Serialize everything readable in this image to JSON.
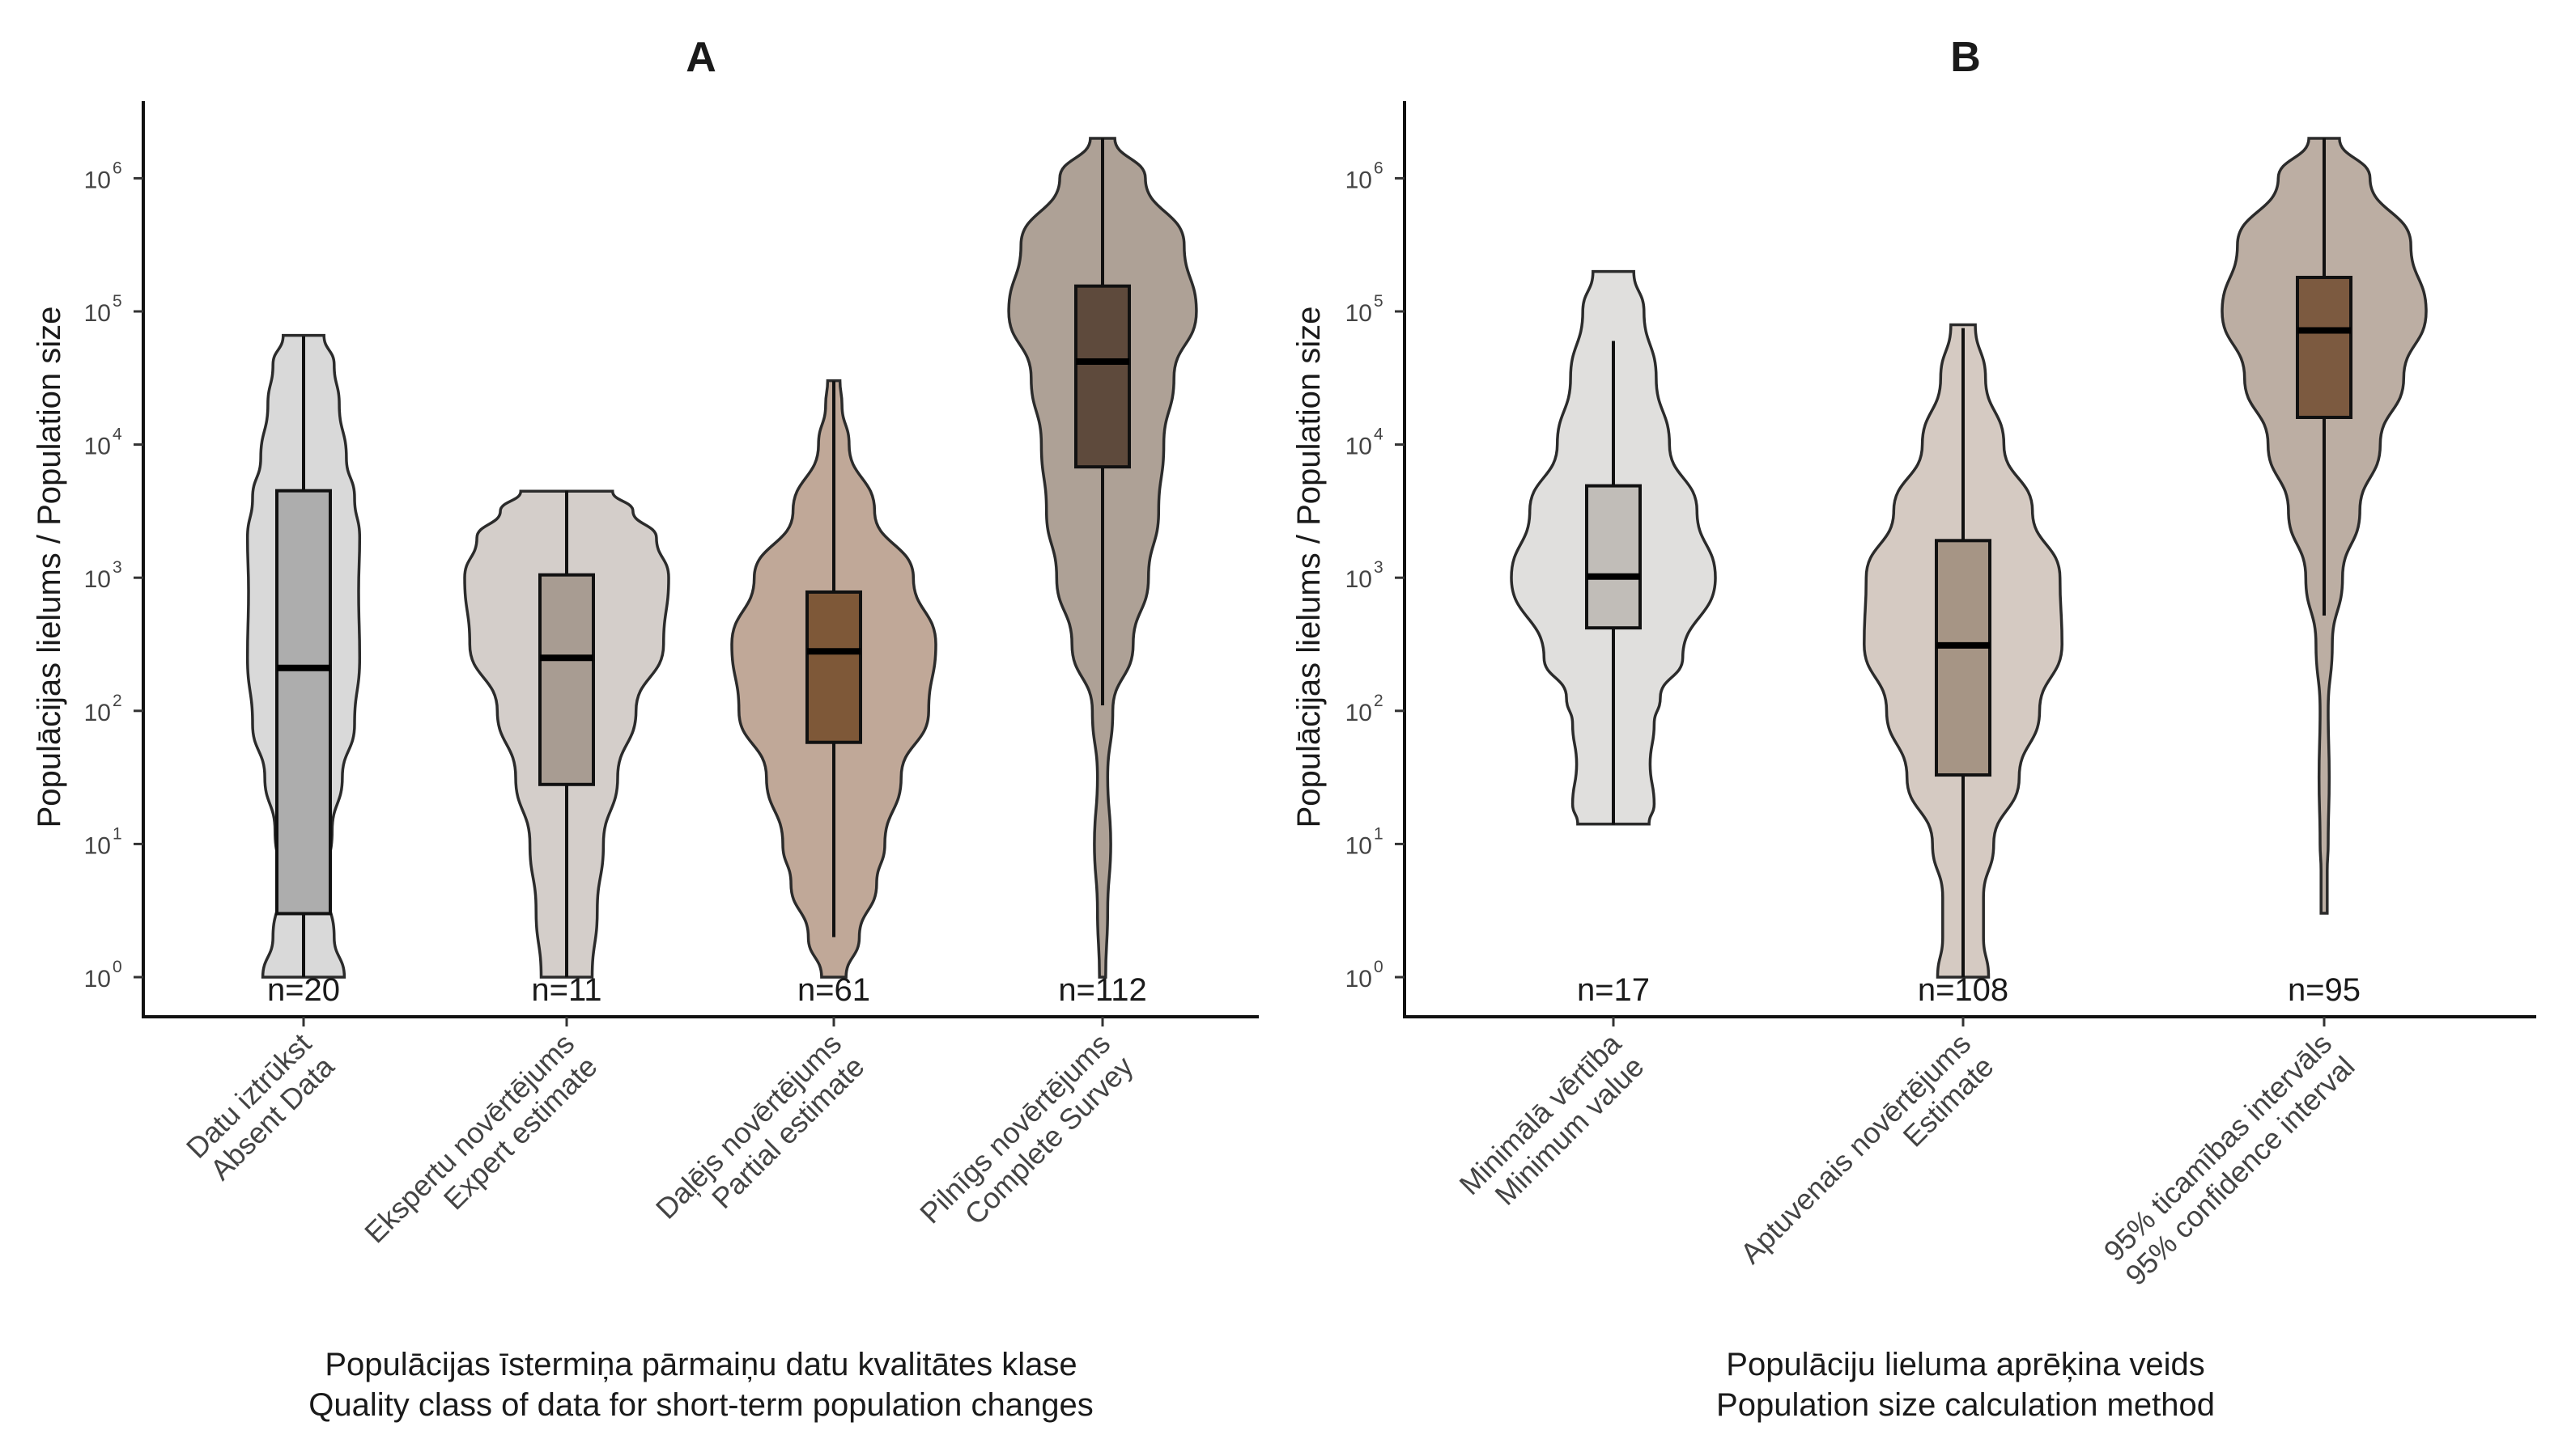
{
  "chart_data": [
    {
      "type": "violin",
      "title": "A",
      "ylabel": "Populācijas lielums / Population size",
      "xlabel": [
        "Populācijas īstermiņa pārmaiņu datu kvalitātes klase",
        "Quality class of data for short-term population changes"
      ],
      "yscale": "log10",
      "ylim": [
        1,
        2000000
      ],
      "yticks": [
        1,
        10,
        100,
        1000,
        10000,
        100000,
        1000000
      ],
      "grid": false,
      "categories": [
        {
          "label": [
            "Datu iztrūkst",
            "Absent Data"
          ],
          "n_label": "n=20",
          "fill": "#d9d9d9",
          "box_fill": "#adadad",
          "min": 1,
          "q1": 3,
          "median": 210,
          "q3": 4500,
          "max": 65000,
          "density": [
            [
              0.0,
              0.4
            ],
            [
              0.3,
              0.3
            ],
            [
              0.7,
              0.22
            ],
            [
              1.1,
              0.28
            ],
            [
              1.5,
              0.38
            ],
            [
              1.9,
              0.5
            ],
            [
              2.4,
              0.55
            ],
            [
              2.9,
              0.54
            ],
            [
              3.3,
              0.55
            ],
            [
              3.6,
              0.5
            ],
            [
              3.9,
              0.42
            ],
            [
              4.3,
              0.35
            ],
            [
              4.6,
              0.3
            ],
            [
              4.82,
              0.2
            ]
          ]
        },
        {
          "label": [
            "Ekspertu novērtējums",
            "Expert estimate"
          ],
          "n_label": "n=11",
          "fill": "#d4ceca",
          "box_fill": "#a89c92",
          "min": 1,
          "q1": 28,
          "median": 250,
          "q3": 1050,
          "max": 4500,
          "density": [
            [
              0.0,
              0.25
            ],
            [
              0.5,
              0.3
            ],
            [
              1.0,
              0.36
            ],
            [
              1.5,
              0.5
            ],
            [
              2.0,
              0.68
            ],
            [
              2.5,
              0.95
            ],
            [
              3.0,
              1.0
            ],
            [
              3.3,
              0.88
            ],
            [
              3.5,
              0.65
            ],
            [
              3.65,
              0.45
            ]
          ]
        },
        {
          "label": [
            "Daļējs novērtējums",
            "Partial estimate"
          ],
          "n_label": "n=61",
          "fill": "#c0a898",
          "box_fill": "#7e5838",
          "min": 2,
          "q1": 58,
          "median": 280,
          "q3": 780,
          "max": 30000,
          "density": [
            [
              0.0,
              0.12
            ],
            [
              0.3,
              0.25
            ],
            [
              0.7,
              0.42
            ],
            [
              1.0,
              0.5
            ],
            [
              1.5,
              0.66
            ],
            [
              2.0,
              0.93
            ],
            [
              2.5,
              1.0
            ],
            [
              3.0,
              0.78
            ],
            [
              3.5,
              0.4
            ],
            [
              4.0,
              0.15
            ],
            [
              4.3,
              0.08
            ],
            [
              4.48,
              0.06
            ]
          ]
        },
        {
          "label": [
            "Pilnīgs novērtējums",
            "Complete Survey"
          ],
          "n_label": "n=112",
          "fill": "#aea196",
          "box_fill": "#5e4a3c",
          "min": 110,
          "q1": 6800,
          "median": 42000,
          "q3": 155000,
          "max": 2000000,
          "density": [
            [
              0.0,
              0.03
            ],
            [
              0.5,
              0.05
            ],
            [
              1.0,
              0.08
            ],
            [
              1.5,
              0.05
            ],
            [
              2.0,
              0.1
            ],
            [
              2.5,
              0.3
            ],
            [
              3.0,
              0.45
            ],
            [
              3.5,
              0.55
            ],
            [
              4.0,
              0.6
            ],
            [
              4.5,
              0.7
            ],
            [
              5.0,
              0.92
            ],
            [
              5.5,
              0.8
            ],
            [
              6.0,
              0.42
            ],
            [
              6.3,
              0.12
            ]
          ]
        }
      ]
    },
    {
      "type": "violin",
      "title": "B",
      "ylabel": "Populācijas lielums / Population size",
      "xlabel": [
        "Populāciju lieluma aprēķina veids",
        "Population size calculation method"
      ],
      "yscale": "log10",
      "ylim": [
        1,
        2000000
      ],
      "yticks": [
        1,
        10,
        100,
        1000,
        10000,
        100000,
        1000000
      ],
      "grid": false,
      "categories": [
        {
          "label": [
            "Minimālā vērtība",
            "Minimum value"
          ],
          "n_label": "n=17",
          "fill": "#e0dfdd",
          "box_fill": "#c1bdb8",
          "min": 14,
          "q1": 420,
          "median": 1020,
          "q3": 4900,
          "max": 60000,
          "density": [
            [
              1.15,
              0.35
            ],
            [
              1.3,
              0.4
            ],
            [
              1.6,
              0.36
            ],
            [
              1.9,
              0.4
            ],
            [
              2.1,
              0.46
            ],
            [
              2.4,
              0.68
            ],
            [
              3.0,
              1.0
            ],
            [
              3.5,
              0.82
            ],
            [
              4.0,
              0.55
            ],
            [
              4.5,
              0.42
            ],
            [
              5.0,
              0.3
            ],
            [
              5.3,
              0.2
            ]
          ]
        },
        {
          "label": [
            "Aptuvenais novērtējums",
            "Estimate"
          ],
          "n_label": "n=108",
          "fill": "#d5cac2",
          "box_fill": "#a69585",
          "min": 1,
          "q1": 33,
          "median": 310,
          "q3": 1900,
          "max": 75000,
          "density": [
            [
              0.0,
              0.25
            ],
            [
              0.3,
              0.2
            ],
            [
              0.6,
              0.2
            ],
            [
              1.0,
              0.3
            ],
            [
              1.5,
              0.55
            ],
            [
              2.0,
              0.75
            ],
            [
              2.5,
              0.97
            ],
            [
              3.0,
              0.95
            ],
            [
              3.5,
              0.68
            ],
            [
              4.0,
              0.4
            ],
            [
              4.5,
              0.22
            ],
            [
              4.9,
              0.12
            ]
          ]
        },
        {
          "label": [
            "95% ticamības intervāls",
            "95% confidence interval"
          ],
          "n_label": "n=95",
          "fill": "#bcaea3",
          "box_fill": "#7c5a40",
          "min": 520,
          "q1": 16000,
          "median": 72000,
          "q3": 180000,
          "max": 2000000,
          "density": [
            [
              0.48,
              0.03
            ],
            [
              0.8,
              0.03
            ],
            [
              1.0,
              0.04
            ],
            [
              1.5,
              0.05
            ],
            [
              2.0,
              0.04
            ],
            [
              2.5,
              0.08
            ],
            [
              3.0,
              0.18
            ],
            [
              3.5,
              0.35
            ],
            [
              4.0,
              0.55
            ],
            [
              4.5,
              0.78
            ],
            [
              5.0,
              1.0
            ],
            [
              5.5,
              0.85
            ],
            [
              6.0,
              0.45
            ],
            [
              6.3,
              0.15
            ]
          ]
        }
      ]
    }
  ]
}
